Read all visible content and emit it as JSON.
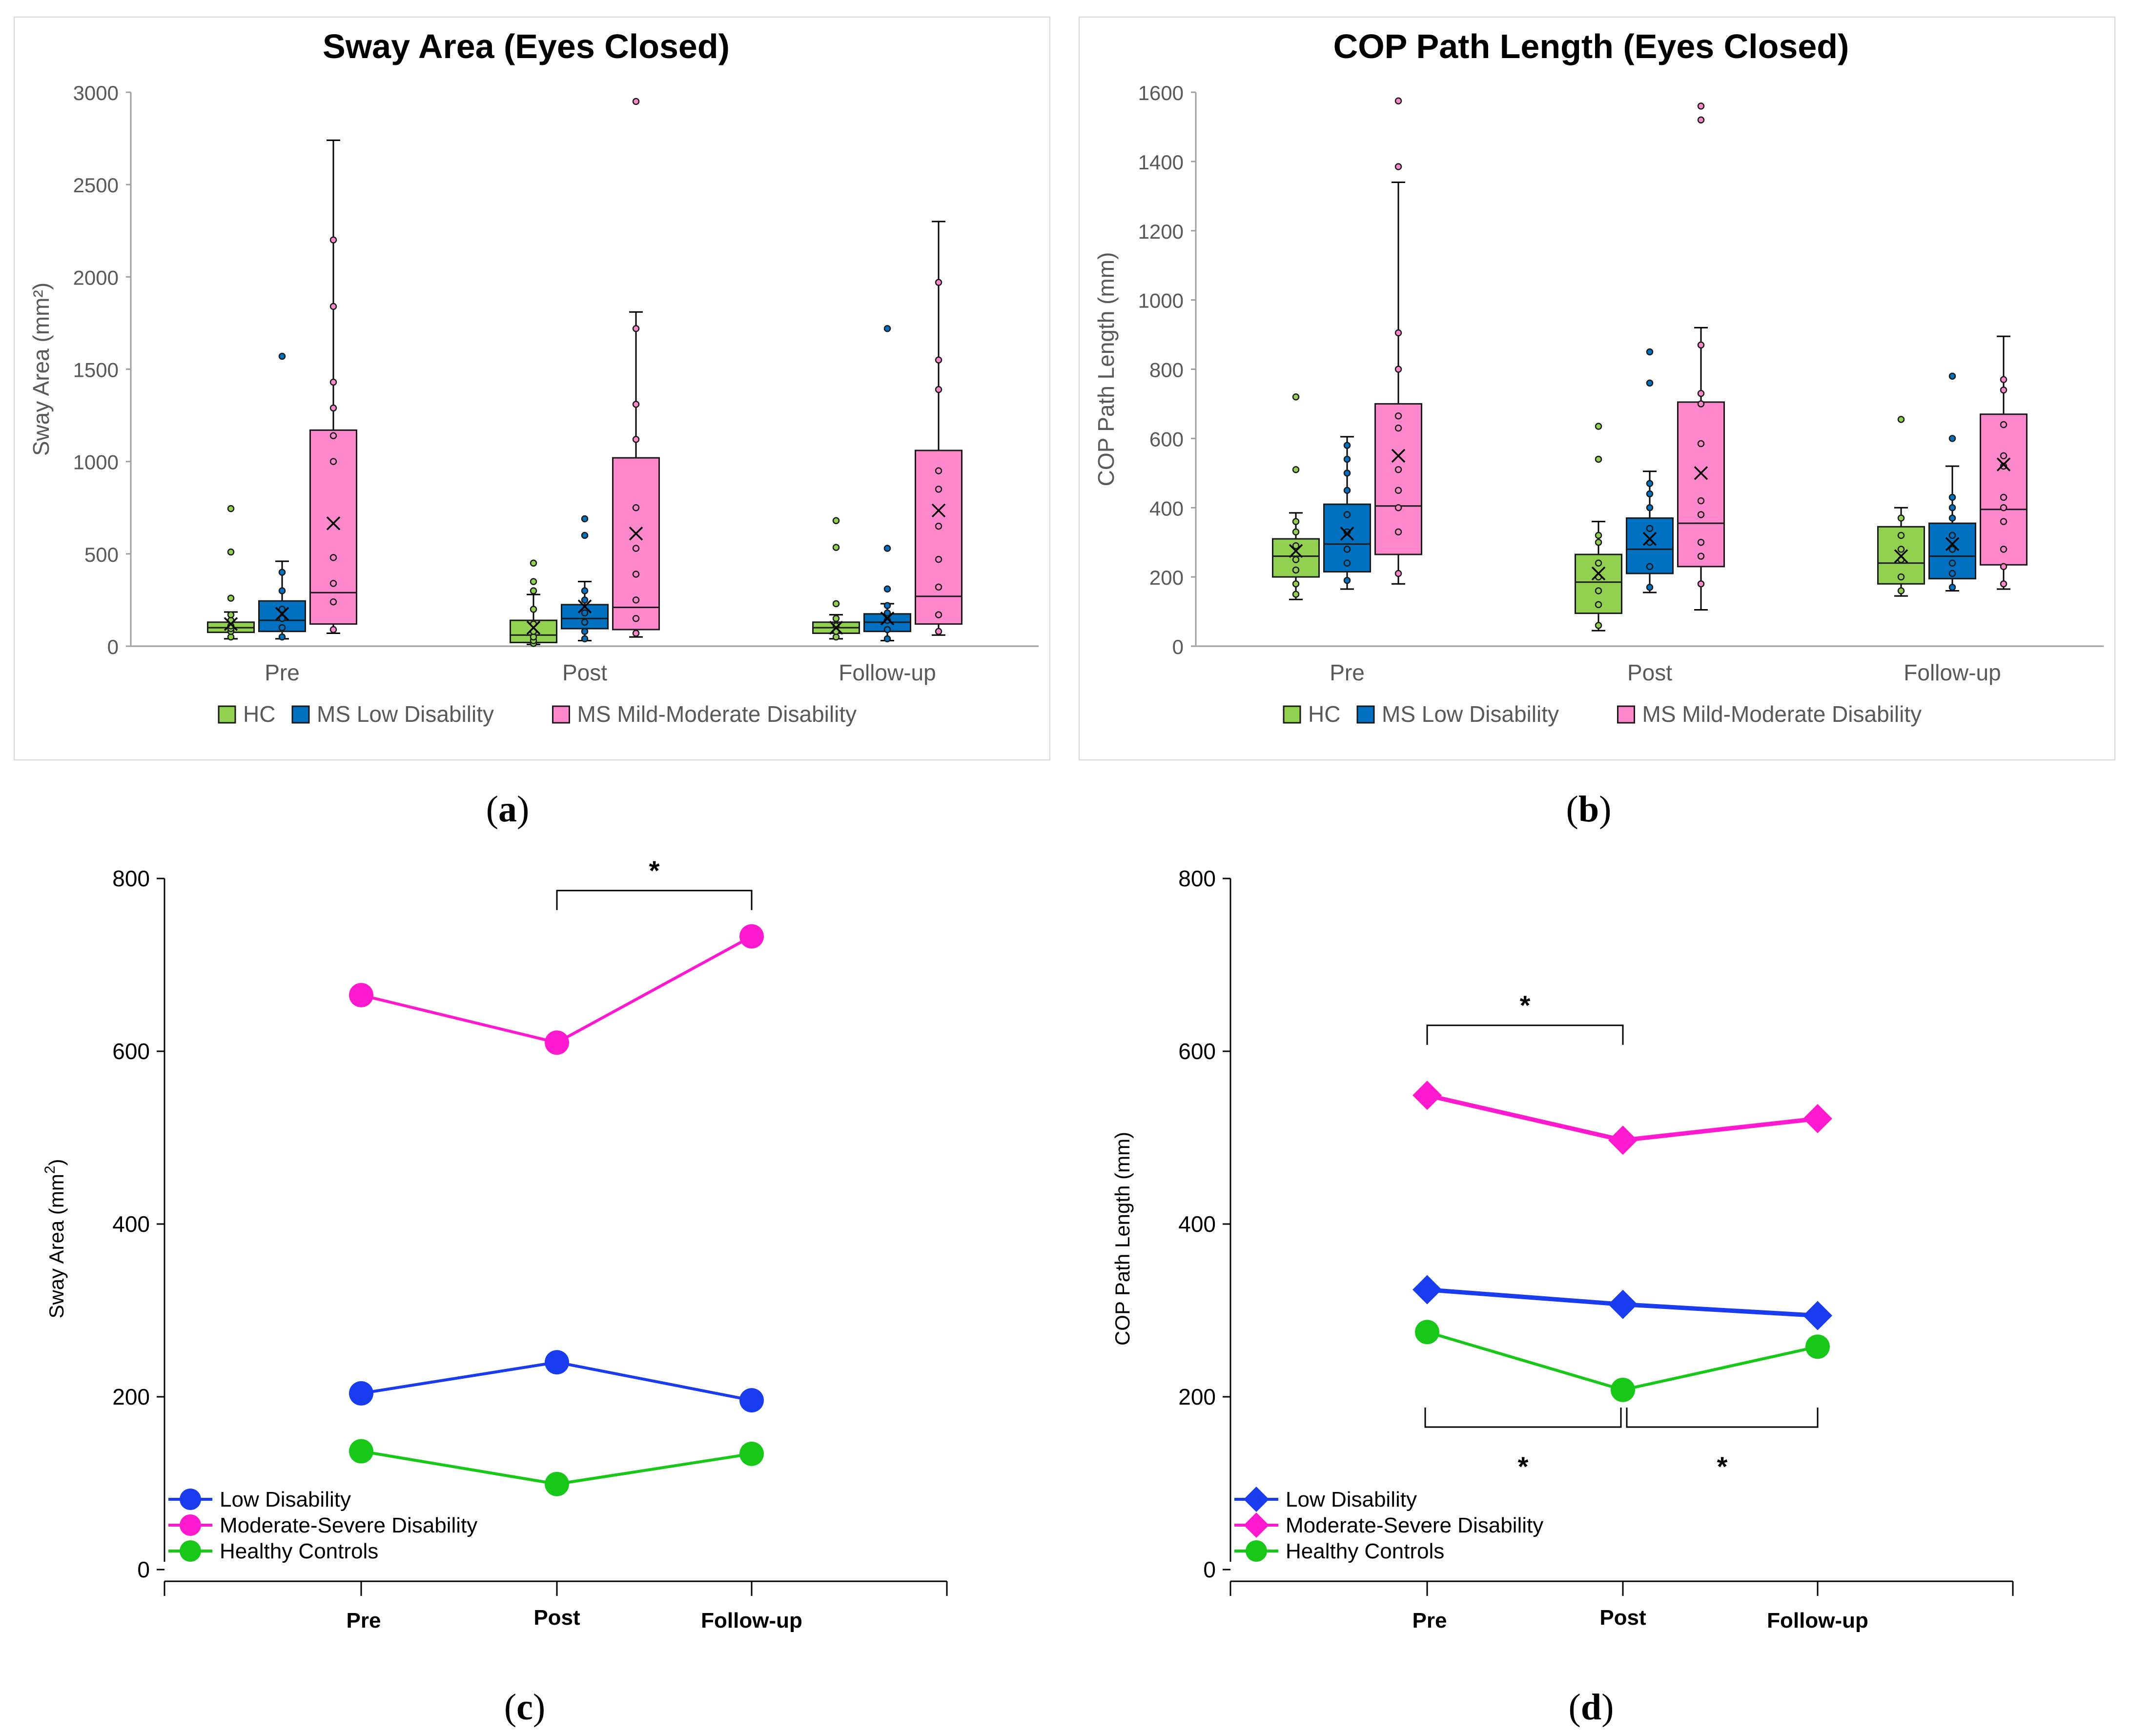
{
  "colors": {
    "hc": "#92d050",
    "ms_low": "#0070c0",
    "ms_mod": "#ff88cc",
    "line_low": "#1a3cf0",
    "line_mod": "#ff1ad0",
    "line_hc": "#18c818",
    "axis": "#000000",
    "box_axis": "#a0a0a0",
    "tick_text": "#595959"
  },
  "captions": {
    "a": "a",
    "b": "b",
    "c": "c",
    "d": "d"
  },
  "chart_data": [
    {
      "id": "a",
      "type": "box",
      "title": "Sway Area (Eyes Closed)",
      "ylabel": "Sway Area (mm²)",
      "ylim": [
        0,
        3000
      ],
      "yticks": [
        0,
        500,
        1000,
        1500,
        2000,
        2500,
        3000
      ],
      "categories": [
        "Pre",
        "Post",
        "Follow-up"
      ],
      "legend": [
        "HC",
        "MS Low Disability",
        "MS Mild-Moderate Disability"
      ],
      "series": [
        {
          "name": "HC",
          "boxes": [
            {
              "min": 40,
              "q1": 75,
              "median": 100,
              "q3": 130,
              "max": 185,
              "mean": 120,
              "outliers": [
                260,
                510,
                745
              ],
              "points": [
                50,
                80,
                95,
                110,
                140,
                170
              ]
            },
            {
              "min": 10,
              "q1": 20,
              "median": 60,
              "q3": 140,
              "max": 280,
              "mean": 100,
              "outliers": [
                350,
                450
              ],
              "points": [
                15,
                30,
                50,
                80,
                120,
                200,
                300
              ]
            },
            {
              "min": 40,
              "q1": 70,
              "median": 100,
              "q3": 130,
              "max": 170,
              "mean": 100,
              "outliers": [
                230,
                535,
                680
              ],
              "points": [
                50,
                80,
                110,
                150
              ]
            }
          ]
        },
        {
          "name": "MS Low Disability",
          "boxes": [
            {
              "min": 40,
              "q1": 80,
              "median": 140,
              "q3": 245,
              "max": 460,
              "mean": 175,
              "outliers": [
                1570
              ],
              "points": [
                50,
                100,
                150,
                200,
                300,
                400
              ]
            },
            {
              "min": 30,
              "q1": 95,
              "median": 150,
              "q3": 225,
              "max": 350,
              "mean": 215,
              "outliers": [
                600,
                690
              ],
              "points": [
                40,
                80,
                130,
                180,
                250,
                300
              ]
            },
            {
              "min": 30,
              "q1": 80,
              "median": 130,
              "q3": 175,
              "max": 230,
              "mean": 150,
              "outliers": [
                310,
                530,
                1720
              ],
              "points": [
                40,
                90,
                140,
                180,
                220
              ]
            }
          ]
        },
        {
          "name": "MS Mild-Moderate Disability",
          "boxes": [
            {
              "min": 70,
              "q1": 120,
              "median": 290,
              "q3": 1170,
              "max": 2740,
              "mean": 665,
              "outliers": [],
              "points": [
                90,
                240,
                340,
                480,
                1000,
                1140,
                1290,
                1430,
                1840,
                2200
              ]
            },
            {
              "min": 50,
              "q1": 90,
              "median": 210,
              "q3": 1020,
              "max": 1810,
              "mean": 610,
              "outliers": [
                2950
              ],
              "points": [
                70,
                150,
                250,
                390,
                530,
                750,
                1120,
                1310,
                1720
              ]
            },
            {
              "min": 60,
              "q1": 120,
              "median": 270,
              "q3": 1060,
              "max": 2300,
              "mean": 735,
              "outliers": [],
              "points": [
                80,
                170,
                320,
                470,
                650,
                850,
                950,
                1390,
                1550,
                1970
              ]
            }
          ]
        }
      ]
    },
    {
      "id": "b",
      "type": "box",
      "title": "COP Path Length (Eyes Closed)",
      "ylabel": "COP Path Length (mm)",
      "ylim": [
        0,
        1600
      ],
      "yticks": [
        0,
        200,
        400,
        600,
        800,
        1000,
        1200,
        1400,
        1600
      ],
      "categories": [
        "Pre",
        "Post",
        "Follow-up"
      ],
      "legend": [
        "HC",
        "MS Low Disability",
        "MS Mild-Moderate Disability"
      ],
      "series": [
        {
          "name": "HC",
          "boxes": [
            {
              "min": 135,
              "q1": 200,
              "median": 260,
              "q3": 310,
              "max": 385,
              "mean": 275,
              "outliers": [
                510,
                720
              ],
              "points": [
                150,
                180,
                220,
                250,
                290,
                330,
                360
              ]
            },
            {
              "min": 45,
              "q1": 95,
              "median": 185,
              "q3": 265,
              "max": 360,
              "mean": 210,
              "outliers": [
                540,
                635
              ],
              "points": [
                60,
                120,
                160,
                200,
                240,
                300,
                320
              ]
            },
            {
              "min": 145,
              "q1": 180,
              "median": 240,
              "q3": 345,
              "max": 400,
              "mean": 260,
              "outliers": [
                655
              ],
              "points": [
                160,
                200,
                250,
                280,
                320,
                370
              ]
            }
          ]
        },
        {
          "name": "MS Low Disability",
          "boxes": [
            {
              "min": 165,
              "q1": 215,
              "median": 295,
              "q3": 410,
              "max": 605,
              "mean": 325,
              "outliers": [],
              "points": [
                190,
                240,
                280,
                330,
                380,
                450,
                500,
                540,
                580
              ]
            },
            {
              "min": 155,
              "q1": 210,
              "median": 280,
              "q3": 370,
              "max": 505,
              "mean": 310,
              "outliers": [
                760,
                850
              ],
              "points": [
                170,
                230,
                300,
                340,
                400,
                440,
                470
              ]
            },
            {
              "min": 160,
              "q1": 195,
              "median": 260,
              "q3": 355,
              "max": 520,
              "mean": 295,
              "outliers": [
                600,
                780
              ],
              "points": [
                170,
                210,
                240,
                280,
                320,
                370,
                400,
                430
              ]
            }
          ]
        },
        {
          "name": "MS Mild-Moderate Disability",
          "boxes": [
            {
              "min": 180,
              "q1": 265,
              "median": 405,
              "q3": 700,
              "max": 1340,
              "mean": 550,
              "outliers": [
                1385,
                1575
              ],
              "points": [
                210,
                330,
                400,
                450,
                510,
                630,
                665,
                800,
                905
              ]
            },
            {
              "min": 105,
              "q1": 230,
              "median": 355,
              "q3": 705,
              "max": 920,
              "mean": 500,
              "outliers": [
                1520,
                1560
              ],
              "points": [
                180,
                260,
                300,
                380,
                420,
                585,
                700,
                730,
                870
              ]
            },
            {
              "min": 165,
              "q1": 235,
              "median": 395,
              "q3": 670,
              "max": 895,
              "mean": 525,
              "outliers": [],
              "points": [
                180,
                230,
                280,
                360,
                400,
                430,
                520,
                550,
                640,
                740,
                770
              ]
            }
          ]
        }
      ]
    },
    {
      "id": "c",
      "type": "line",
      "ylabel": "Sway Area (mm",
      "ylabel_sup": "2",
      "ylabel_close": ")",
      "ylim": [
        0,
        800
      ],
      "yticks": [
        0,
        200,
        400,
        600,
        800
      ],
      "categories": [
        "Pre",
        "Post",
        "Follow-up"
      ],
      "marker": "circle",
      "series": [
        {
          "name": "Low Disability",
          "values": [
            204,
            240,
            196
          ]
        },
        {
          "name": "Moderate-Severe Disability",
          "values": [
            665,
            610,
            733
          ]
        },
        {
          "name": "Healthy Controls",
          "values": [
            137,
            99,
            134
          ]
        }
      ],
      "brackets": [
        {
          "from": 1,
          "to": 2,
          "y": 786,
          "side": "above",
          "label": "*"
        }
      ]
    },
    {
      "id": "d",
      "type": "line",
      "ylabel": "COP Path Length (mm)",
      "ylim": [
        0,
        800
      ],
      "yticks": [
        0,
        200,
        400,
        600,
        800
      ],
      "categories": [
        "Pre",
        "Post",
        "Follow-up"
      ],
      "marker": "diamond",
      "series": [
        {
          "name": "Low Disability",
          "values": [
            324,
            307,
            294
          ]
        },
        {
          "name": "Moderate-Severe Disability",
          "values": [
            549,
            497,
            522
          ]
        },
        {
          "name": "Healthy Controls",
          "values": [
            275,
            208,
            258
          ]
        }
      ],
      "brackets": [
        {
          "from": 0,
          "to": 1,
          "y": 630,
          "side": "above",
          "label": "*"
        },
        {
          "from": 0,
          "to": 1,
          "y": 165,
          "side": "below",
          "label": "*"
        },
        {
          "from": 1,
          "to": 2,
          "y": 165,
          "side": "below",
          "label": "*"
        }
      ]
    }
  ]
}
